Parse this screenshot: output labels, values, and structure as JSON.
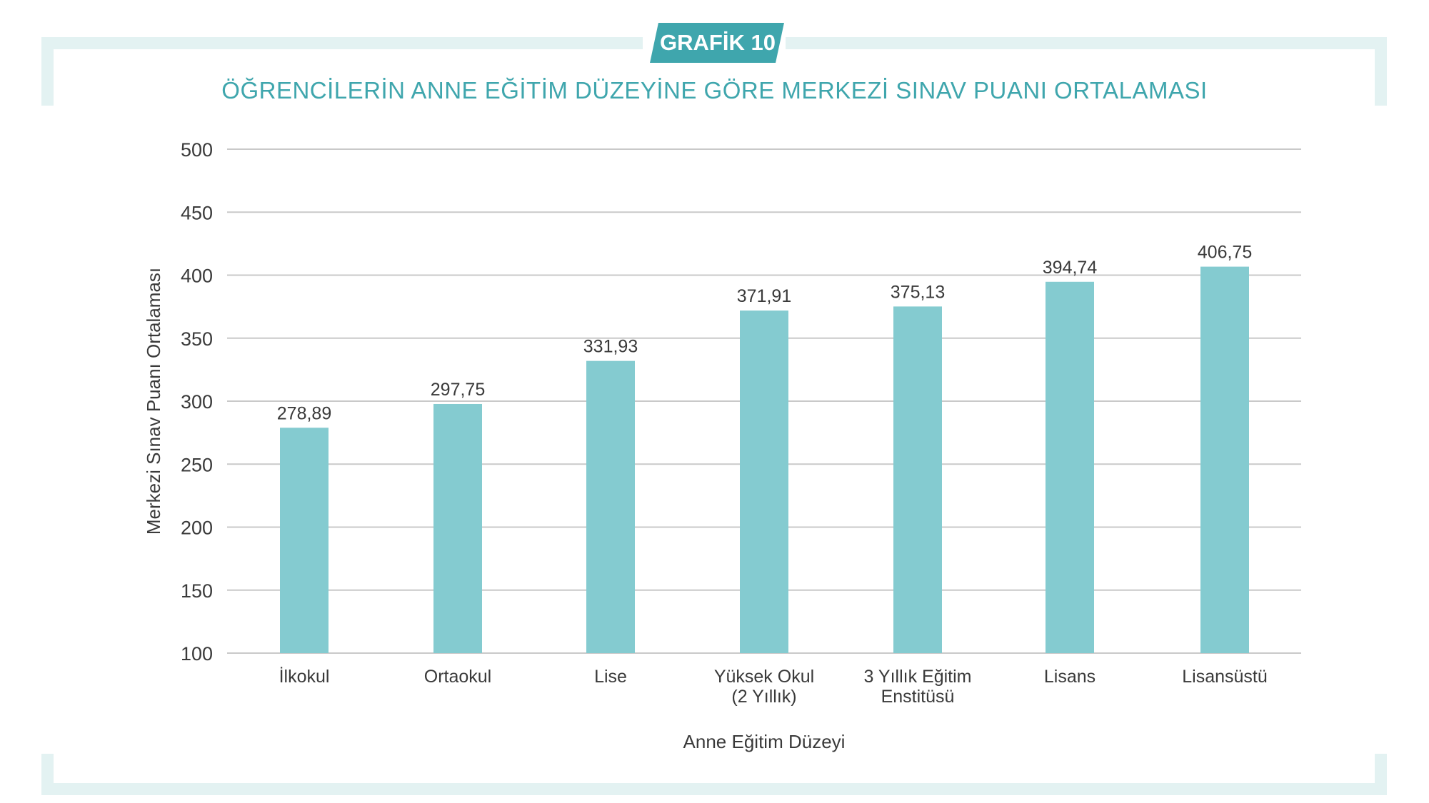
{
  "badge": "GRAFİK 10",
  "colors": {
    "accent": "#3fa6ad",
    "bar": "#84cbd0",
    "frame": "#e3f2f2",
    "grid": "#c9c9c9",
    "text": "#3a3a3a"
  },
  "chart_data": {
    "type": "bar",
    "title": "ÖĞRENCİLERİN ANNE EĞİTİM DÜZEYİNE GÖRE MERKEZİ SINAV PUANI ORTALAMASI",
    "xlabel": "Anne Eğitim Düzeyi",
    "ylabel": "Merkezi Sınav Puanı Ortalaması",
    "ylim": [
      100,
      500
    ],
    "yticks": [
      100,
      150,
      200,
      250,
      300,
      350,
      400,
      450,
      500
    ],
    "grid": true,
    "categories": [
      [
        "İlkokul"
      ],
      [
        "Ortaokul"
      ],
      [
        "Lise"
      ],
      [
        "Yüksek Okul",
        "(2 Yıllık)"
      ],
      [
        "3 Yıllık Eğitim",
        "Enstitüsü"
      ],
      [
        "Lisans"
      ],
      [
        "Lisansüstü"
      ]
    ],
    "values": [
      278.89,
      297.75,
      331.93,
      371.91,
      375.13,
      394.74,
      406.75
    ],
    "value_labels": [
      "278,89",
      "297,75",
      "331,93",
      "371,91",
      "375,13",
      "394,74",
      "406,75"
    ]
  }
}
